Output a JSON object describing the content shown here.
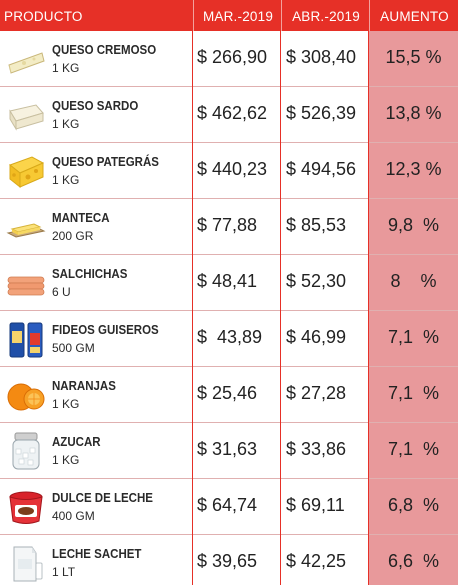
{
  "header": {
    "producto": "PRODUCTO",
    "mar": "MAR.-2019",
    "abr": "ABR.-2019",
    "aumento": "AUMENTO"
  },
  "rows": [
    {
      "name": "QUESO CREMOSO",
      "unit": "1 KG",
      "mar": "$ 266,90",
      "abr": "$ 308,40",
      "pct": "15,5 %",
      "icon": "cheese-wedge-icon"
    },
    {
      "name": "QUESO SARDO",
      "unit": "1 KG",
      "mar": "$ 462,62",
      "abr": "$ 526,39",
      "pct": "13,8 %",
      "icon": "cheese-block-icon"
    },
    {
      "name": "QUESO PATEGRÁS",
      "unit": "1 KG",
      "mar": "$ 440,23",
      "abr": "$ 494,56",
      "pct": "12,3 %",
      "icon": "cheese-holes-icon"
    },
    {
      "name": "MANTECA",
      "unit": "200 GR",
      "mar": "$ 77,88",
      "abr": "$ 85,53",
      "pct": "9,8  %",
      "icon": "butter-icon"
    },
    {
      "name": "SALCHICHAS",
      "unit": "6 U",
      "mar": "$ 48,41",
      "abr": "$ 52,30",
      "pct": "8    %",
      "icon": "sausage-icon"
    },
    {
      "name": "FIDEOS GUISEROS",
      "unit": "500 GM",
      "mar": "$  43,89",
      "abr": "$ 46,99",
      "pct": "7,1  %",
      "icon": "pasta-pack-icon"
    },
    {
      "name": "NARANJAS",
      "unit": "1 KG",
      "mar": "$ 25,46",
      "abr": "$ 27,28",
      "pct": "7,1  %",
      "icon": "orange-icon"
    },
    {
      "name": "AZUCAR",
      "unit": "1 KG",
      "mar": "$ 31,63",
      "abr": "$ 33,86",
      "pct": "7,1  %",
      "icon": "sugar-jar-icon"
    },
    {
      "name": "DULCE DE LECHE",
      "unit": "400 GM",
      "mar": "$ 64,74",
      "abr": "$ 69,11",
      "pct": "6,8  %",
      "icon": "dulce-de-leche-icon"
    },
    {
      "name": "LECHE SACHET",
      "unit": "1 LT",
      "mar": "$ 39,65",
      "abr": "$ 42,25",
      "pct": "6,6  %",
      "icon": "milk-sachet-icon"
    }
  ],
  "colors": {
    "header_bg": "#e63027",
    "aumento_bg": "#e8999b",
    "text": "#222222"
  }
}
